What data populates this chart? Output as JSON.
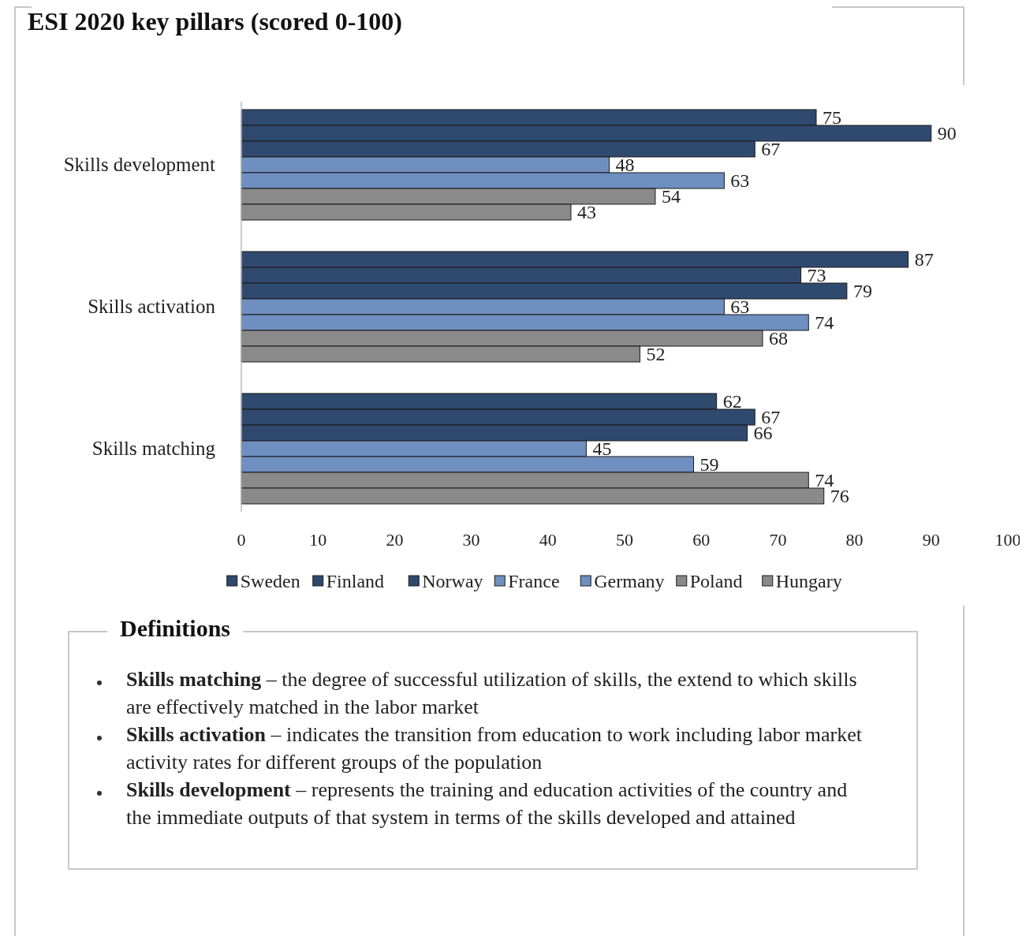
{
  "chart_data": {
    "type": "bar",
    "orientation": "horizontal",
    "title": "ESI 2020 key pillars (scored 0-100)",
    "categories": [
      "Skills development",
      "Skills activation",
      "Skills matching"
    ],
    "series": [
      {
        "name": "Sweden",
        "color": "#2f4a6e",
        "values": [
          75,
          87,
          62
        ]
      },
      {
        "name": "Finland",
        "color": "#2f4a6e",
        "values": [
          90,
          73,
          67
        ]
      },
      {
        "name": "Norway",
        "color": "#2f4a6e",
        "values": [
          67,
          79,
          66
        ]
      },
      {
        "name": "France",
        "color": "#6e8fc0",
        "values": [
          48,
          63,
          45
        ]
      },
      {
        "name": "Germany",
        "color": "#6e8fc0",
        "values": [
          63,
          74,
          59
        ]
      },
      {
        "name": "Poland",
        "color": "#8a8a8a",
        "values": [
          54,
          68,
          74
        ]
      },
      {
        "name": "Hungary",
        "color": "#8a8a8a",
        "values": [
          43,
          52,
          76
        ]
      }
    ],
    "xlim": [
      0,
      100
    ],
    "xticks": [
      0,
      10,
      20,
      30,
      40,
      50,
      60,
      70,
      80,
      90,
      100
    ],
    "data_labels": true,
    "legend": "bottom",
    "annotations": [
      "Definitions",
      "Skills matching – the degree of successful utilization of skills, the extend to which skills are effectively matched in the labor market",
      "Skills activation – indicates the transition from education to work including labor market activity rates for different groups of the population",
      "Skills development – represents the training and education activities of the country and the immediate outputs of that system in terms of the skills developed and attained"
    ]
  }
}
